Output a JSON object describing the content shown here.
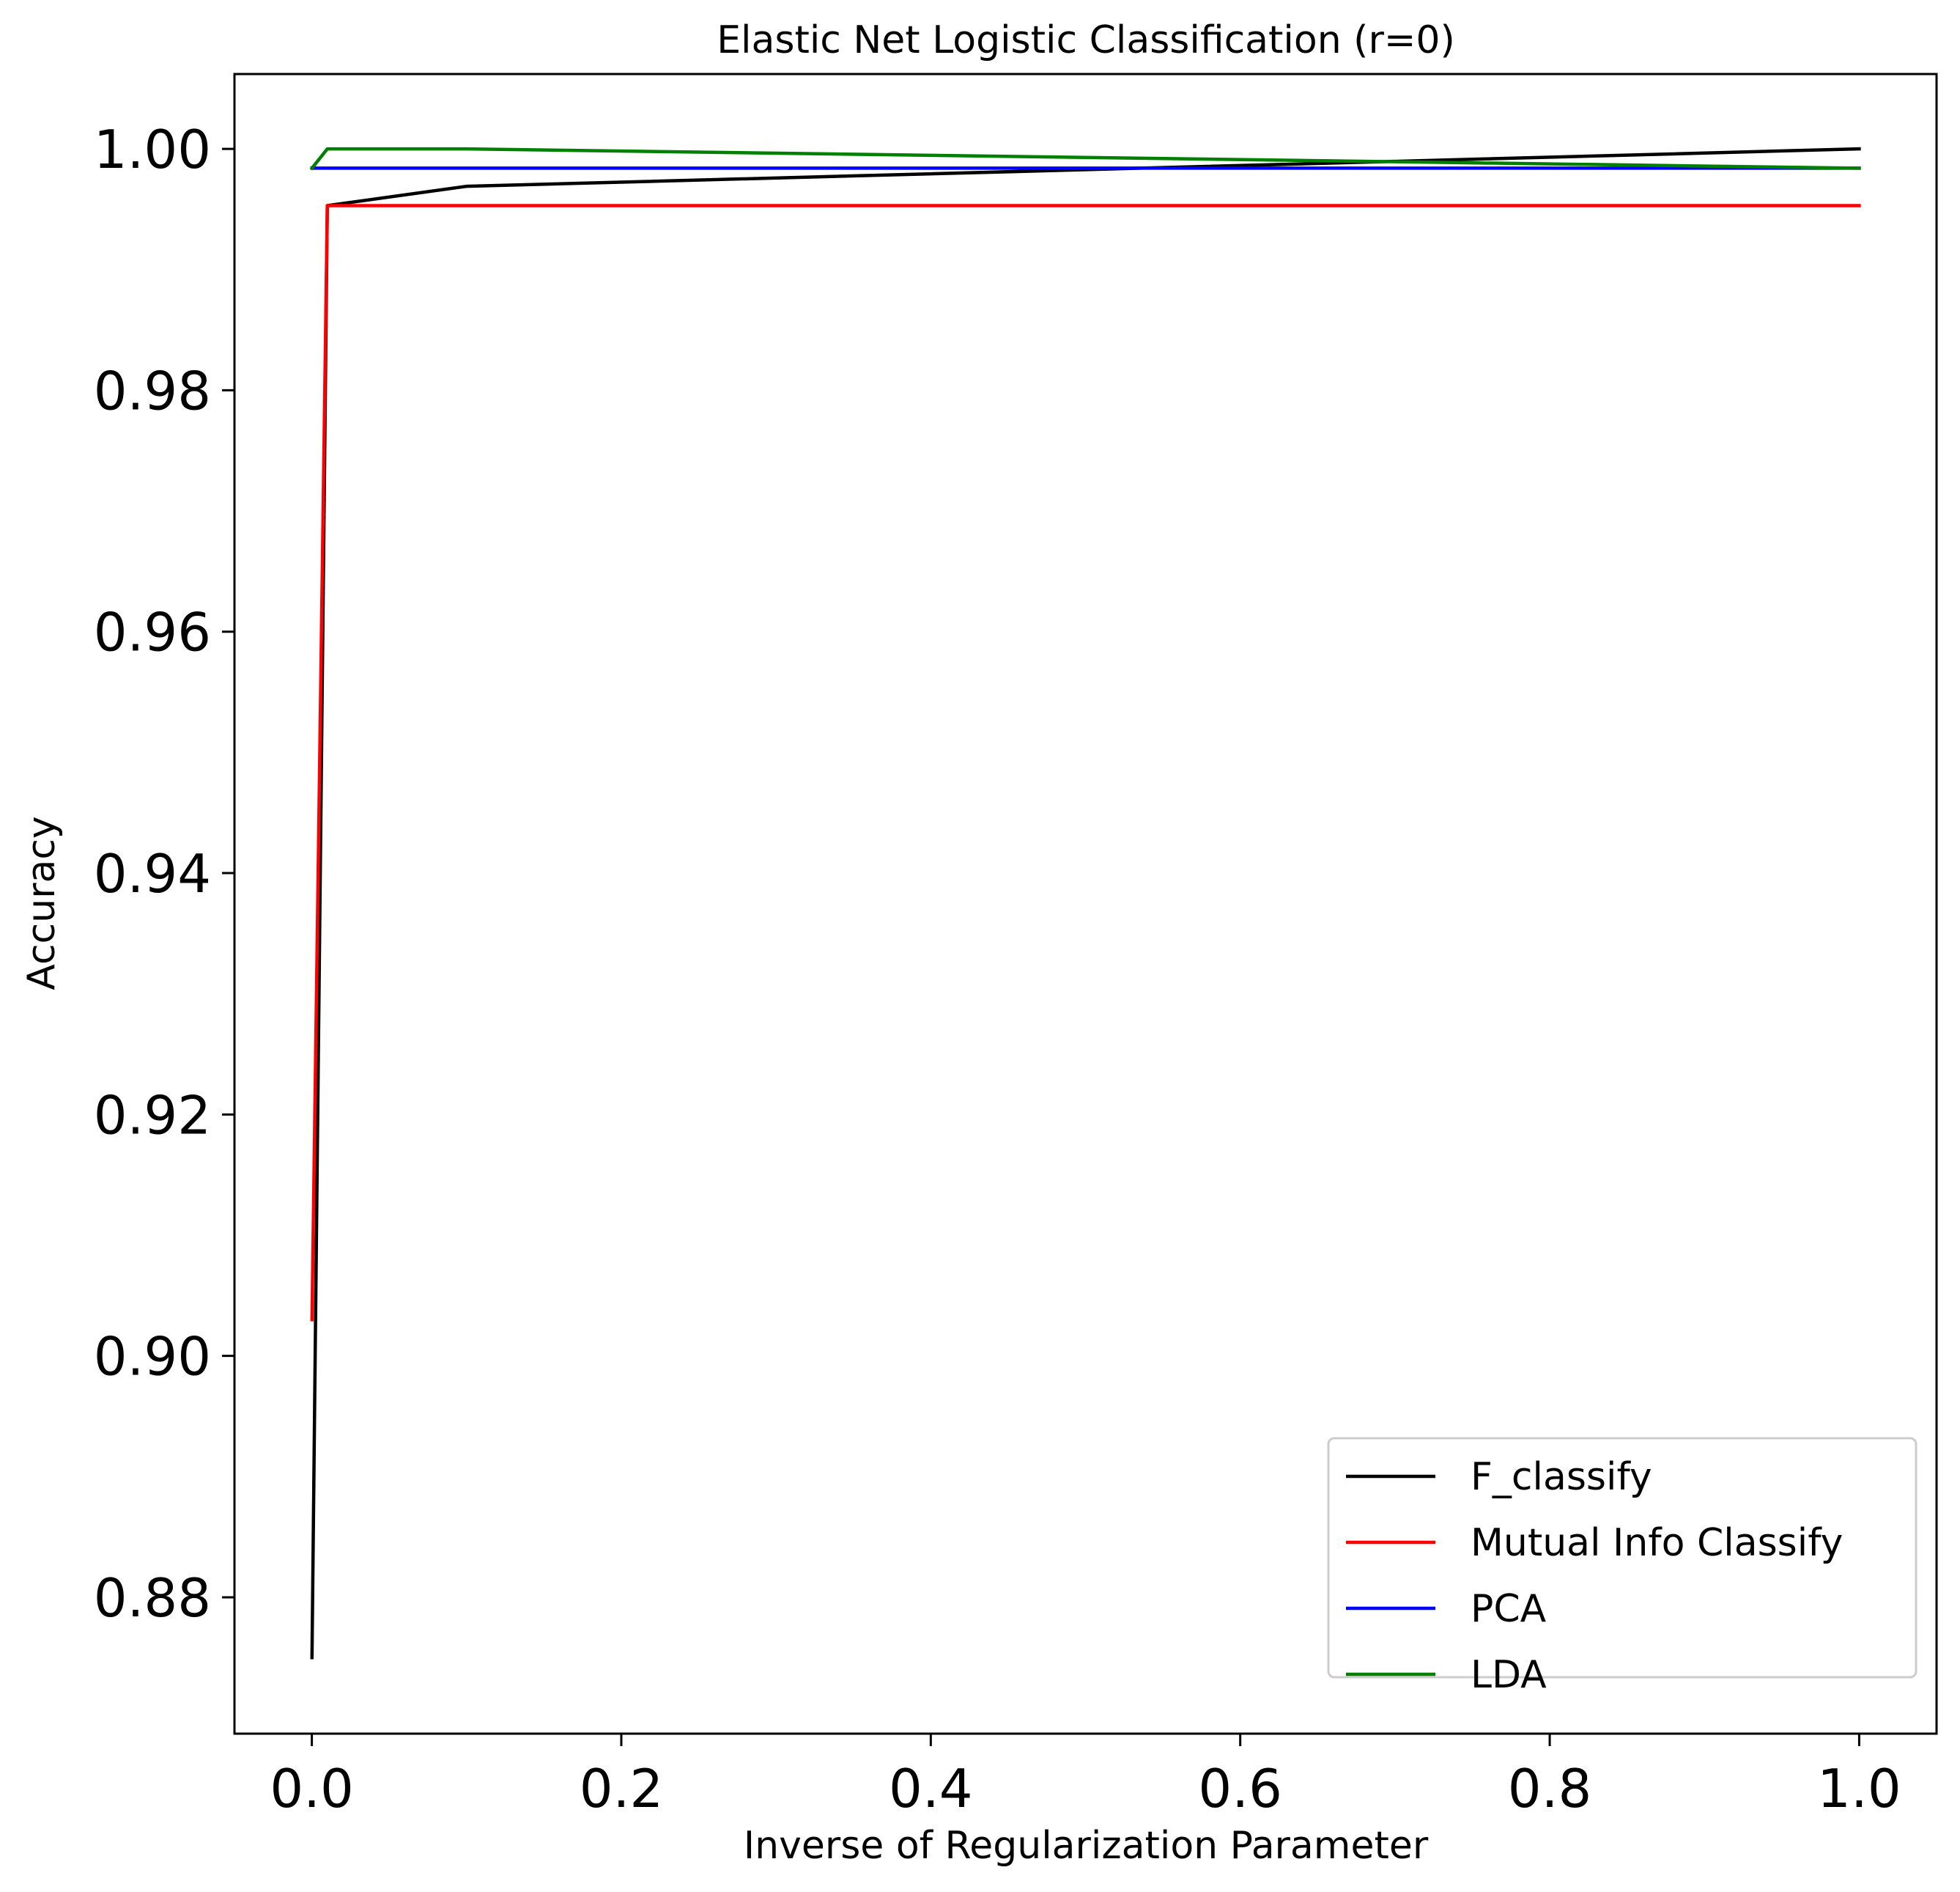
{
  "chart_data": {
    "type": "line",
    "title": "Elastic Net Logistic Classification (r=0)",
    "xlabel": "Inverse of Regularization Parameter",
    "ylabel": "Accuracy",
    "xlim": [
      -0.05,
      1.05
    ],
    "ylim": [
      0.8687,
      1.0062
    ],
    "xticks": [
      0.0,
      0.2,
      0.4,
      0.6,
      0.8,
      1.0
    ],
    "xtick_labels": [
      "0.0",
      "0.2",
      "0.4",
      "0.6",
      "0.8",
      "1.0"
    ],
    "yticks": [
      0.88,
      0.9,
      0.92,
      0.94,
      0.96,
      0.98,
      1.0
    ],
    "ytick_labels": [
      "0.88",
      "0.90",
      "0.92",
      "0.94",
      "0.96",
      "0.98",
      "1.00"
    ],
    "grid": false,
    "legend_position": "lower-right",
    "x": [
      0.0001,
      0.01,
      0.1,
      1.0
    ],
    "series": [
      {
        "name": "F_classify",
        "color": "#000000",
        "values": [
          0.875,
          0.9953,
          0.9969,
          1.0
        ]
      },
      {
        "name": "Mutual Info Classify",
        "color": "#ff0000",
        "values": [
          0.903,
          0.9953,
          0.9953,
          0.9953
        ]
      },
      {
        "name": "PCA",
        "color": "#0000ff",
        "values": [
          0.9984,
          0.9984,
          0.9984,
          0.9984
        ]
      },
      {
        "name": "LDA",
        "color": "#008000",
        "values": [
          0.9984,
          1.0,
          1.0,
          0.9984
        ]
      }
    ]
  }
}
